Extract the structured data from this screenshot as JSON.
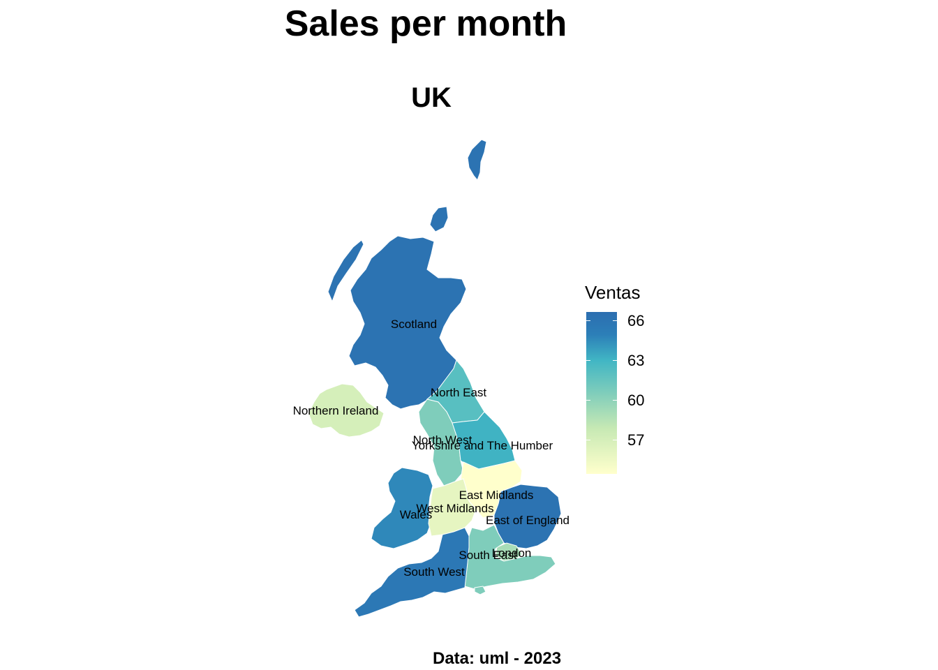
{
  "title": "Sales per month",
  "subtitle": "UK",
  "caption": "Data: uml - 2023",
  "legend": {
    "title": "Ventas",
    "ticks": [
      "66",
      "63",
      "60",
      "57"
    ],
    "min": 55.0,
    "max": 67.0
  },
  "chart_data": {
    "type": "choropleth",
    "value_name": "Ventas",
    "regions": [
      {
        "name": "Scotland",
        "value": 66.5
      },
      {
        "name": "North East",
        "value": 62.5
      },
      {
        "name": "Northern Ireland",
        "value": 57.5
      },
      {
        "name": "North West",
        "value": 61.0
      },
      {
        "name": "Yorkshire and The Humber",
        "value": 63.5
      },
      {
        "name": "Wales",
        "value": 65.0
      },
      {
        "name": "East Midlands",
        "value": 55.0
      },
      {
        "name": "West Midlands",
        "value": 56.5
      },
      {
        "name": "East of England",
        "value": 66.5
      },
      {
        "name": "London",
        "value": 59.5
      },
      {
        "name": "South East",
        "value": 61.0
      },
      {
        "name": "South West",
        "value": 66.0
      }
    ]
  }
}
